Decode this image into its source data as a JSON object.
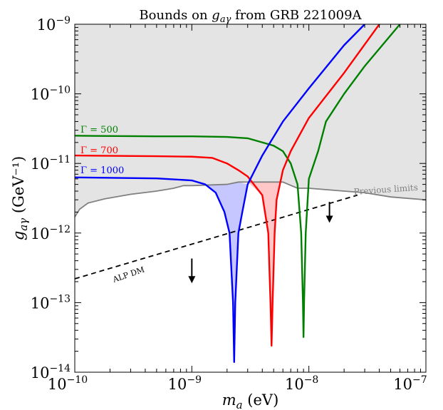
{
  "chart_data": {
    "type": "line",
    "title": "Bounds on g_aγ from GRB 221009A",
    "xlabel": "m_a (eV)",
    "ylabel": "g_aγ (GeV⁻¹)",
    "x_scale": "log",
    "y_scale": "log",
    "xlim": [
      1e-10,
      1e-07
    ],
    "ylim": [
      1e-14,
      1e-09
    ],
    "x_ticks": [
      {
        "value": 1e-10,
        "base": "10",
        "exp": "−10"
      },
      {
        "value": 1e-09,
        "base": "10",
        "exp": "−9"
      },
      {
        "value": 1e-08,
        "base": "10",
        "exp": "−8"
      },
      {
        "value": 1e-07,
        "base": "10",
        "exp": "−7"
      }
    ],
    "y_ticks": [
      {
        "value": 1e-14,
        "base": "10",
        "exp": "−14"
      },
      {
        "value": 1e-13,
        "base": "10",
        "exp": "−13"
      },
      {
        "value": 1e-12,
        "base": "10",
        "exp": "−12"
      },
      {
        "value": 1e-11,
        "base": "10",
        "exp": "−11"
      },
      {
        "value": 1e-10,
        "base": "10",
        "exp": "−10"
      },
      {
        "value": 1e-09,
        "base": "10",
        "exp": "−9"
      }
    ],
    "previous_limits": {
      "label": "Previous limits",
      "fill_color": "#e4e4e4",
      "line_color": "#808080",
      "boundary": [
        [
          1e-10,
          1.7e-12
        ],
        [
          1.1e-10,
          2.2e-12
        ],
        [
          1.3e-10,
          2.7e-12
        ],
        [
          1.8e-10,
          3.1e-12
        ],
        [
          3e-10,
          3.6e-12
        ],
        [
          5e-10,
          4e-12
        ],
        [
          7e-10,
          4.4e-12
        ],
        [
          8.5e-10,
          4.8e-12
        ],
        [
          1e-09,
          4.8e-12
        ],
        [
          2e-09,
          5e-12
        ],
        [
          2.5e-09,
          5.4e-12
        ],
        [
          3.5e-09,
          5.4e-12
        ],
        [
          6e-09,
          5.4e-12
        ],
        [
          8e-09,
          4.4e-12
        ],
        [
          1e-08,
          4.4e-12
        ],
        [
          2e-08,
          4e-12
        ],
        [
          3e-08,
          3.8e-12
        ],
        [
          5e-08,
          3.3e-12
        ],
        [
          1e-07,
          3e-12
        ]
      ]
    },
    "series": [
      {
        "name": "Γ = 500",
        "color": "#008000",
        "points": [
          [
            1e-10,
            2.5e-11
          ],
          [
            5e-10,
            2.45e-11
          ],
          [
            1e-09,
            2.45e-11
          ],
          [
            2e-09,
            2.4e-11
          ],
          [
            3e-09,
            2.3e-11
          ],
          [
            5e-09,
            1.8e-11
          ],
          [
            6e-09,
            1.5e-11
          ],
          [
            7e-09,
            1e-11
          ],
          [
            8e-09,
            5e-12
          ],
          [
            8.6e-09,
            1e-12
          ],
          [
            8.9e-09,
            1e-13
          ],
          [
            9e-09,
            3.2e-14
          ],
          [
            9.1e-09,
            1e-13
          ],
          [
            9.4e-09,
            1e-12
          ],
          [
            1e-08,
            6e-12
          ],
          [
            1.2e-08,
            1.5e-11
          ],
          [
            1.4e-08,
            4e-11
          ],
          [
            2e-08,
            1e-10
          ],
          [
            3e-08,
            2.5e-10
          ],
          [
            6e-08,
            1e-09
          ]
        ]
      },
      {
        "name": "Γ = 700",
        "color": "#ff0000",
        "points": [
          [
            1e-10,
            1.3e-11
          ],
          [
            5e-10,
            1.27e-11
          ],
          [
            1e-09,
            1.25e-11
          ],
          [
            1.5e-09,
            1.2e-11
          ],
          [
            2e-09,
            1e-11
          ],
          [
            2.5e-09,
            8e-12
          ],
          [
            3e-09,
            6.5e-12
          ],
          [
            4e-09,
            3.5e-12
          ],
          [
            4.5e-09,
            1e-12
          ],
          [
            4.7e-09,
            1e-13
          ],
          [
            4.8e-09,
            2.4e-14
          ],
          [
            4.9e-09,
            1e-13
          ],
          [
            5.1e-09,
            1e-12
          ],
          [
            5.3e-09,
            3e-12
          ],
          [
            6e-09,
            8e-12
          ],
          [
            7e-09,
            1.5e-11
          ],
          [
            1e-08,
            4.5e-11
          ],
          [
            2e-08,
            2e-10
          ],
          [
            4e-08,
            1e-09
          ]
        ]
      },
      {
        "name": "Γ = 1000",
        "color": "#0000ff",
        "points": [
          [
            1e-10,
            6.3e-12
          ],
          [
            5e-10,
            6.1e-12
          ],
          [
            1e-09,
            5.7e-12
          ],
          [
            1.3e-09,
            5e-12
          ],
          [
            1.6e-09,
            3.8e-12
          ],
          [
            1.9e-09,
            2e-12
          ],
          [
            2.1e-09,
            1e-12
          ],
          [
            2.25e-09,
            1e-13
          ],
          [
            2.3e-09,
            1.4e-14
          ],
          [
            2.35e-09,
            1e-13
          ],
          [
            2.5e-09,
            1e-12
          ],
          [
            2.7e-09,
            2e-12
          ],
          [
            3e-09,
            5e-12
          ],
          [
            4e-09,
            1.3e-11
          ],
          [
            6e-09,
            4e-11
          ],
          [
            1e-08,
            1.2e-10
          ],
          [
            2e-08,
            5e-10
          ],
          [
            3e-08,
            1e-09
          ]
        ]
      }
    ],
    "shaded_regions": [
      {
        "color": "#0000ff",
        "opacity": 0.22,
        "boundary": [
          [
            1.3e-09,
            5e-12
          ],
          [
            1.6e-09,
            3.8e-12
          ],
          [
            1.9e-09,
            2e-12
          ],
          [
            2.1e-09,
            1e-12
          ],
          [
            2.25e-09,
            1e-13
          ],
          [
            2.3e-09,
            1.4e-14
          ],
          [
            2.35e-09,
            1e-13
          ],
          [
            2.5e-09,
            1e-12
          ],
          [
            2.7e-09,
            2e-12
          ],
          [
            3e-09,
            5e-12
          ],
          [
            2.5e-09,
            5.4e-12
          ],
          [
            2e-09,
            5e-12
          ]
        ]
      },
      {
        "color": "#ff0000",
        "opacity": 0.22,
        "boundary": [
          [
            3e-09,
            5.4e-12
          ],
          [
            4e-09,
            3.5e-12
          ],
          [
            4.5e-09,
            1e-12
          ],
          [
            4.7e-09,
            1e-13
          ],
          [
            4.8e-09,
            2.4e-14
          ],
          [
            4.9e-09,
            1e-13
          ],
          [
            5.1e-09,
            1e-12
          ],
          [
            5.3e-09,
            3e-12
          ],
          [
            5.7e-09,
            5.4e-12
          ]
        ]
      }
    ],
    "alp_dm": {
      "label": "ALP DM",
      "color": "#000000",
      "points": [
        [
          1e-10,
          2.2e-13
        ],
        [
          2.6e-08,
          3.5e-12
        ]
      ]
    },
    "arrows": [
      {
        "x": 1e-09,
        "y_top": 4.3e-13,
        "y_bottom": 1.9e-13
      },
      {
        "x": 1.5e-08,
        "y_top": 2.8e-12,
        "y_bottom": 1.4e-12
      }
    ]
  }
}
